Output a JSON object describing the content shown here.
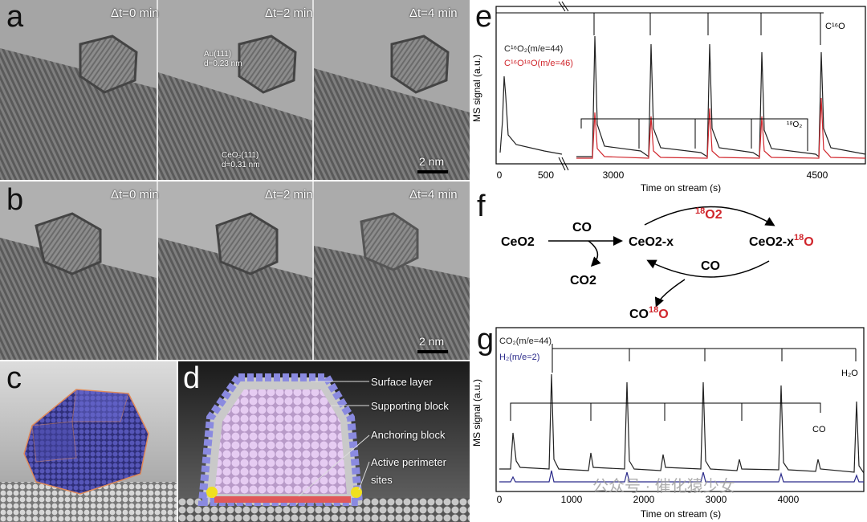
{
  "panels": {
    "a": {
      "label": "a",
      "times": [
        "Δt=0 min",
        "Δt=2 min",
        "Δt=4 min"
      ],
      "scale_bar": "2 nm",
      "ann_au": "Au(111)",
      "ann_au_d": "d=0.23 nm",
      "ann_ceo2": "CeO₂(111)",
      "ann_ceo2_d": "d=0.31 nm"
    },
    "b": {
      "label": "b",
      "times": [
        "Δt=0 min",
        "Δt=2 min",
        "Δt=4 min"
      ],
      "scale_bar": "2 nm"
    },
    "c": {
      "label": "c"
    },
    "d": {
      "label": "d",
      "labels": [
        "Surface layer",
        "Supporting block",
        "Anchoring block",
        "Active perimeter",
        "sites"
      ]
    },
    "e": {
      "label": "e",
      "ylabel": "MS signal (a.u.)",
      "xlabel": "Time on stream (s)",
      "xticks": [
        "0",
        "500",
        "3000",
        "4500"
      ],
      "legend1": "C¹⁶O₂(m/e=44)",
      "legend2": "C¹⁶O¹⁸O(m/e=46)",
      "pulse_top": "C¹⁶O",
      "pulse_bottom": "¹⁸O₂",
      "color1": "#222222",
      "color2": "#d0262c"
    },
    "f": {
      "label": "f",
      "ceo2": "CeO2",
      "ceo2x": "CeO2-x",
      "ceo2x18o": "CeO2-x",
      "sup18": "18",
      "o": "O",
      "co_top": "CO",
      "co2": "CO2",
      "o2_18": "O2",
      "co_mid": "CO",
      "co18o": "CO",
      "red": "#d0262c"
    },
    "g": {
      "label": "g",
      "ylabel": "MS signal (a.u.)",
      "xlabel": "Time on stream (s)",
      "xticks": [
        "0",
        "1000",
        "2000",
        "3000",
        "4000"
      ],
      "legend1": "CO₂(m/e=44)",
      "legend2": "H₂(m/e=2)",
      "pulse_top": "H₂O",
      "pulse_bottom": "CO",
      "color1": "#222222",
      "color2": "#2a2a8a"
    }
  },
  "watermark": "公众号 · 催化猿少女"
}
